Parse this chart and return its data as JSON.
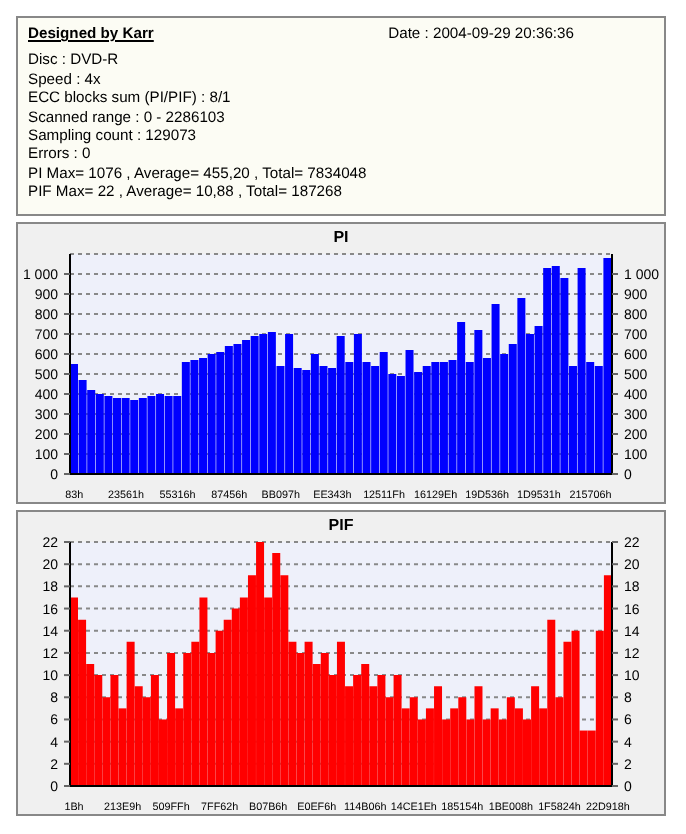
{
  "chart_data": [
    {
      "type": "other",
      "title": "Designed by Karr",
      "annotations": [
        "Date : 2004-09-29 20:36:36",
        "Disc : DVD-R",
        "Speed : 4x",
        "ECC blocks sum (PI/PIF) : 8/1",
        "Scanned range : 0 - 2286103",
        "Sampling count : 129073",
        "Errors : 0",
        "PI Max= 1076 , Average= 455,20 , Total= 7834048",
        "PIF Max= 22 , Average= 10,88 , Total= 187268"
      ]
    },
    {
      "type": "bar",
      "title": "PI",
      "categories": [
        "83h",
        null,
        null,
        null,
        null,
        null,
        "23561h",
        null,
        null,
        null,
        null,
        null,
        "55316h",
        null,
        null,
        null,
        null,
        null,
        "87456h",
        null,
        null,
        null,
        null,
        null,
        "BB097h",
        null,
        null,
        null,
        null,
        null,
        "EE343h",
        null,
        null,
        null,
        null,
        null,
        "12511Fh",
        null,
        null,
        null,
        null,
        null,
        "16129Eh",
        null,
        null,
        null,
        null,
        null,
        "19D536h",
        null,
        null,
        null,
        null,
        null,
        "1D9531h",
        null,
        null,
        null,
        null,
        null,
        "215706h",
        null,
        null
      ],
      "series": [
        {
          "color": "#0000ff",
          "values": [
            550,
            470,
            420,
            400,
            390,
            380,
            380,
            370,
            380,
            390,
            400,
            390,
            390,
            560,
            570,
            580,
            600,
            610,
            640,
            650,
            670,
            690,
            700,
            710,
            540,
            700,
            530,
            520,
            600,
            540,
            530,
            690,
            560,
            700,
            560,
            540,
            610,
            500,
            490,
            620,
            510,
            540,
            560,
            560,
            570,
            760,
            560,
            720,
            580,
            850,
            600,
            650,
            880,
            700,
            740,
            1030,
            1040,
            980,
            540,
            1030,
            560,
            540,
            1080
          ]
        }
      ],
      "ylim": [
        0,
        1100
      ],
      "yticks": [
        0,
        100,
        200,
        300,
        400,
        500,
        600,
        700,
        800,
        900,
        {
          "value": 1000,
          "label": "1 000"
        }
      ],
      "y2lim": [
        0,
        1100
      ],
      "y2ticks": [
        0,
        100,
        200,
        300,
        400,
        500,
        600,
        700,
        800,
        900,
        {
          "value": 1000,
          "label": "1 000"
        }
      ],
      "grid": "y",
      "legend": false
    },
    {
      "type": "bar",
      "title": "PIF",
      "categories": [
        "1Bh",
        null,
        null,
        null,
        null,
        null,
        "213E9h",
        null,
        null,
        null,
        null,
        null,
        "509FFh",
        null,
        null,
        null,
        null,
        null,
        "7FF62h",
        null,
        null,
        null,
        null,
        null,
        "B07B6h",
        null,
        null,
        null,
        null,
        null,
        "E0EF6h",
        null,
        null,
        null,
        null,
        null,
        "114B06h",
        null,
        null,
        null,
        null,
        null,
        "14CE1Eh",
        null,
        null,
        null,
        null,
        null,
        "185154h",
        null,
        null,
        null,
        null,
        null,
        "1BE008h",
        null,
        null,
        null,
        null,
        null,
        "1F5824h",
        null,
        null,
        null,
        null,
        null,
        "22D918h"
      ],
      "series": [
        {
          "color": "#ff0000",
          "values": [
            17,
            15,
            11,
            10,
            8,
            10,
            7,
            13,
            9,
            8,
            10,
            6,
            12,
            7,
            12,
            13,
            17,
            12,
            14,
            15,
            16,
            17,
            19,
            22,
            17,
            21,
            19,
            13,
            12,
            13,
            11,
            12,
            10,
            13,
            9,
            10,
            11,
            9,
            10,
            8,
            10,
            7,
            8,
            6,
            7,
            9,
            6,
            7,
            8,
            6,
            9,
            6,
            7,
            6,
            8,
            7,
            6,
            9,
            7,
            15,
            8,
            13,
            14,
            5,
            5,
            14,
            19
          ]
        }
      ],
      "ylim": [
        0,
        22
      ],
      "yticks": [
        0,
        2,
        4,
        6,
        8,
        10,
        12,
        14,
        16,
        18,
        20,
        22
      ],
      "y2lim": [
        0,
        22
      ],
      "y2ticks": [
        0,
        2,
        4,
        6,
        8,
        10,
        12,
        14,
        16,
        18,
        20,
        22
      ],
      "grid": "y",
      "legend": false
    }
  ]
}
